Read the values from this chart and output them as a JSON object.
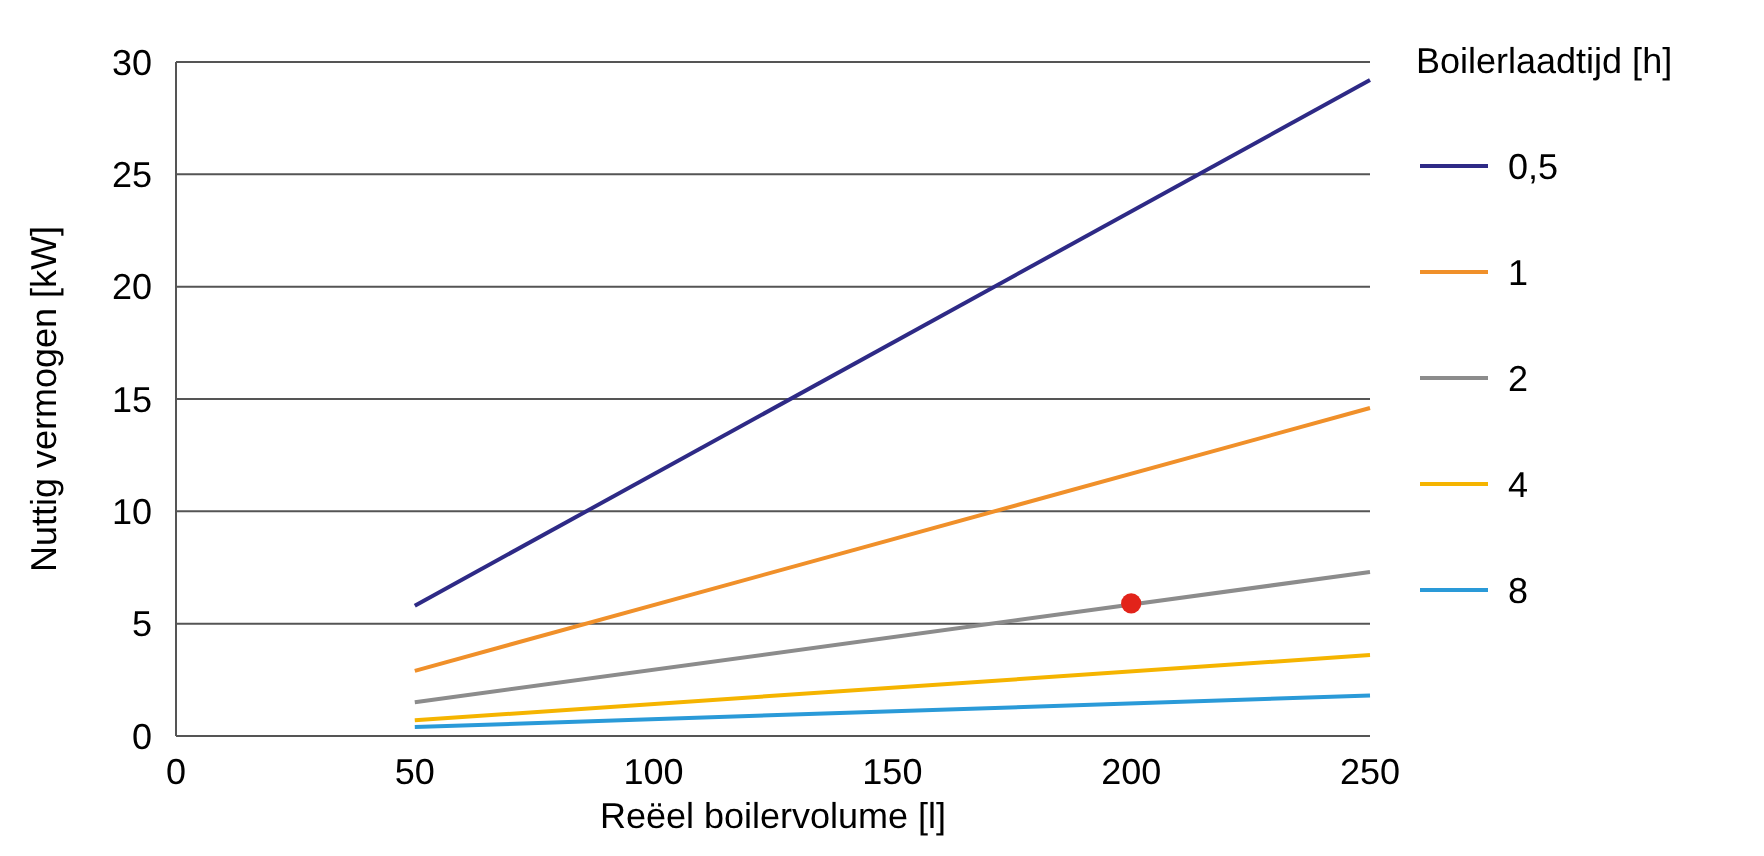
{
  "chart_data": {
    "type": "line",
    "xlabel": "Reëel boilervolume [l]",
    "ylabel": "Nuttig vermogen [kW]",
    "legend_title": "Boilerlaadtijd [h]",
    "x": [
      50,
      250
    ],
    "xlim": [
      0,
      250
    ],
    "xticks": [
      0,
      50,
      100,
      150,
      200,
      250
    ],
    "ylim": [
      0,
      30
    ],
    "yticks": [
      0,
      5,
      10,
      15,
      20,
      25,
      30
    ],
    "grid": "y",
    "legend": "right",
    "line_style": "solid",
    "series": [
      {
        "name": "0,5",
        "color": "#2e2a86",
        "values": [
          5.8,
          29.2
        ]
      },
      {
        "name": "1",
        "color": "#f0902a",
        "values": [
          2.9,
          14.6
        ]
      },
      {
        "name": "2",
        "color": "#8c8c8c",
        "values": [
          1.5,
          7.3
        ]
      },
      {
        "name": "4",
        "color": "#f5b400",
        "values": [
          0.7,
          3.6
        ]
      },
      {
        "name": "8",
        "color": "#2a9ad8",
        "values": [
          0.4,
          1.8
        ]
      },
      {
        "type": "scatter",
        "color": "#e2231a",
        "x": [
          200
        ],
        "values": [
          5.9
        ],
        "marker": "circle"
      }
    ]
  }
}
